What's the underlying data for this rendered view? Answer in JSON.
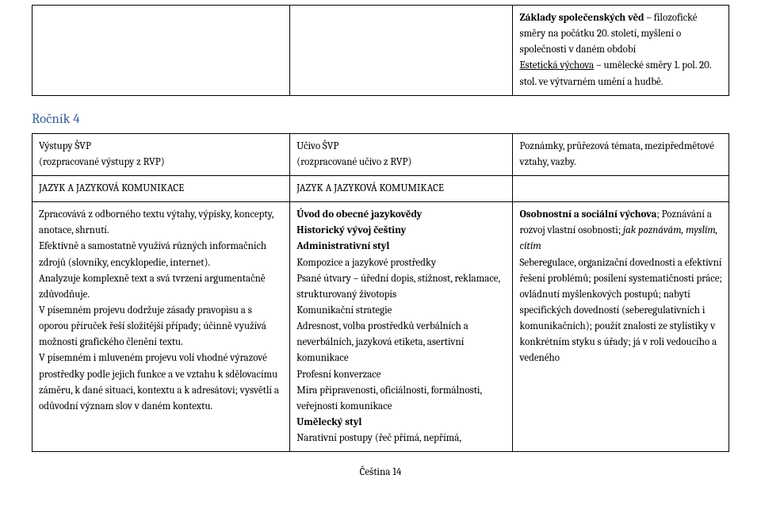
{
  "topRow": {
    "col1": "",
    "col2": "",
    "col3": [
      {
        "t": "Základy společenských věd",
        "b": true,
        "u": false
      },
      {
        "t": " – filozofické směry na počátku 20. století, myšlení o společnosti v daném období",
        "b": false,
        "u": false
      },
      {
        "br": true
      },
      {
        "t": "Estetická výchova",
        "b": false,
        "u": true
      },
      {
        "t": " – umělecké směry 1. pol. 20. stol. ve výtvarném umění a hudbě.",
        "b": false,
        "u": false
      }
    ]
  },
  "heading": "Ročník 4",
  "headerRow": {
    "col1": [
      {
        "t": "Výstupy ŠVP"
      },
      {
        "br": true
      },
      {
        "t": "(rozpracované výstupy z RVP)"
      }
    ],
    "col2": [
      {
        "t": "Učivo ŠVP"
      },
      {
        "br": true
      },
      {
        "t": "(rozpracované učivo z RVP)"
      }
    ],
    "col3": [
      {
        "t": "Poznámky, průřezová témata, mezipředmětové vztahy, vazby."
      }
    ]
  },
  "titleRow": {
    "col1": "JAZYK A JAZYKOVÁ KOMUNIKACE",
    "col2": "JAZYK A JAZYKOVÁ KOMUMIKACE",
    "col3": ""
  },
  "bodyRow": {
    "col1": [
      {
        "t": "Zpracovává z odborného textu výtahy, výpisky, koncepty, anotace, shrnutí."
      },
      {
        "br": true
      },
      {
        "t": "Efektivně a samostatně využívá různých informačních zdrojů (slovníky, encyklopedie, internet)."
      },
      {
        "br": true
      },
      {
        "t": "Analyzuje komplexně text a svá tvrzení argumentačně zdůvodňuje."
      },
      {
        "br": true
      },
      {
        "t": "V písemném projevu dodržuje zásady pravopisu a s oporou příruček řeší složitější případy; účinně využívá možností grafického členění textu."
      },
      {
        "br": true
      },
      {
        "t": "V písemném i mluveném projevu volí vhodné výrazové prostředky podle jejich funkce a ve vztahu k sdělovacímu záměru, k dané situaci, kontextu a k adresátovi; vysvětlí a odůvodní význam slov v daném kontextu."
      }
    ],
    "col2": [
      {
        "t": "Úvod do obecné jazykovědy",
        "b": true
      },
      {
        "br": true
      },
      {
        "t": "Historický vývoj češtiny",
        "b": true
      },
      {
        "br": true
      },
      {
        "t": "Administrativní styl",
        "b": true
      },
      {
        "br": true
      },
      {
        "t": "Kompozice a jazykové prostředky"
      },
      {
        "br": true
      },
      {
        "t": "Psané útvary – úřední dopis, stížnost, reklamace, strukturovaný životopis"
      },
      {
        "br": true
      },
      {
        "t": "Komunikační strategie"
      },
      {
        "br": true
      },
      {
        "t": "Adresnost, volba prostředků verbálních a neverbálních, jazyková etiketa, asertivní komunikace"
      },
      {
        "br": true
      },
      {
        "t": "Profesní konverzace"
      },
      {
        "br": true
      },
      {
        "t": "Míra připravenosti, oficiálnosti, formálnosti, veřejnosti komunikace"
      },
      {
        "br": true
      },
      {
        "t": "Umělecký styl",
        "b": true
      },
      {
        "br": true
      },
      {
        "t": "Narativní postupy (řeč přímá, nepřímá,"
      }
    ],
    "col3": [
      {
        "t": "Osobnostní a sociální výchova",
        "b": true
      },
      {
        "t": "; Poznávání a rozvoj vlastní osobnosti; "
      },
      {
        "t": "jak poznávám, myslím, cítím",
        "i": true
      },
      {
        "br": true
      },
      {
        "t": "Seberegulace, organizační dovednosti a efektivní řešení problémů; "
      },
      {
        "t": "posílení systematičnosti práce; ovládnutí myšlenkových postupů; nabytí specifických dovedností (seberegulativních i komunikačních); použít znalosti ze stylistiky v konkrétním styku s úřady;  já v roli vedoucího a vedeného"
      }
    ]
  },
  "footer": "Čeština 14"
}
